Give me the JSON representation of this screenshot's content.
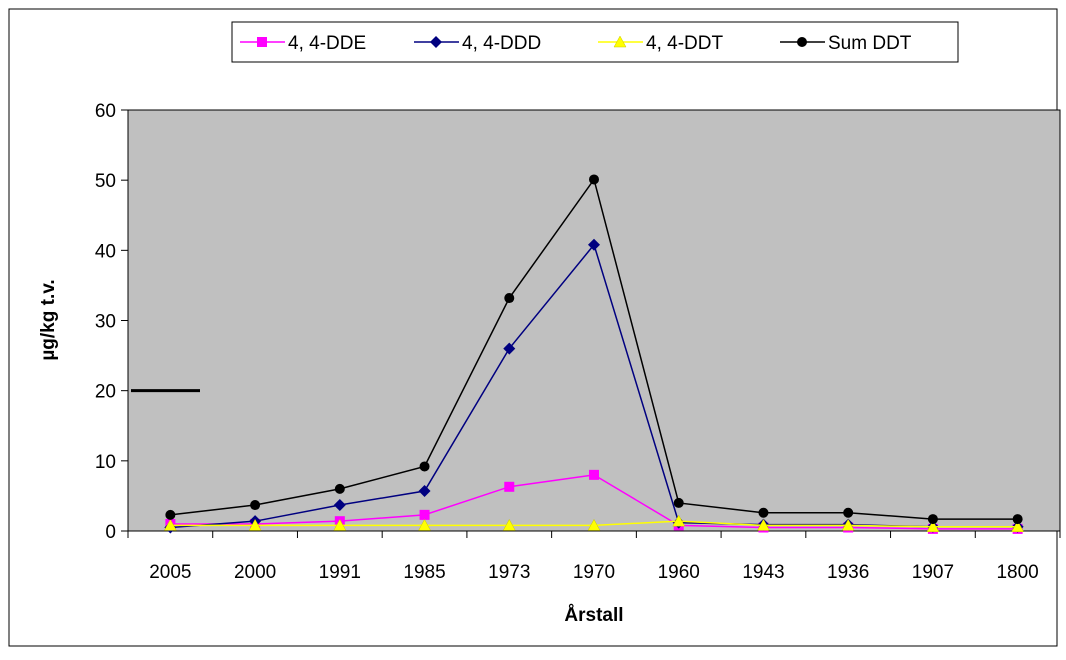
{
  "chart_data": {
    "type": "line",
    "title": "",
    "xlabel": "Årstall",
    "ylabel": "µg/kg t.v.",
    "categories": [
      "2005",
      "2000",
      "1991",
      "1985",
      "1973",
      "1970",
      "1960",
      "1943",
      "1936",
      "1907",
      "1800"
    ],
    "ylim": [
      0,
      60
    ],
    "yticks": [
      0,
      10,
      20,
      30,
      40,
      50,
      60
    ],
    "grid": false,
    "plot_background": "#c0c0c0",
    "legend_position": "top",
    "series": [
      {
        "name": "4, 4-DDE",
        "color": "#ff00ff",
        "marker": "square",
        "values": [
          1.0,
          1.0,
          1.4,
          2.3,
          6.3,
          8.0,
          0.8,
          0.5,
          0.5,
          0.3,
          0.3
        ]
      },
      {
        "name": "4, 4-DDD",
        "color": "#000080",
        "marker": "diamond",
        "values": [
          0.5,
          1.4,
          3.7,
          5.7,
          26.0,
          40.8,
          1.2,
          0.9,
          0.9,
          0.6,
          0.6
        ]
      },
      {
        "name": "4, 4-DDT",
        "color": "#ffff00",
        "marker": "triangle",
        "values": [
          0.8,
          0.8,
          0.8,
          0.8,
          0.8,
          0.8,
          1.4,
          0.8,
          0.8,
          0.6,
          0.6
        ]
      },
      {
        "name": "Sum DDT",
        "color": "#000000",
        "marker": "circle",
        "values": [
          2.3,
          3.7,
          6.0,
          9.2,
          33.2,
          50.1,
          4.0,
          2.6,
          2.6,
          1.7,
          1.7
        ]
      }
    ],
    "reference_line": {
      "value": 20,
      "color": "#000000"
    }
  }
}
